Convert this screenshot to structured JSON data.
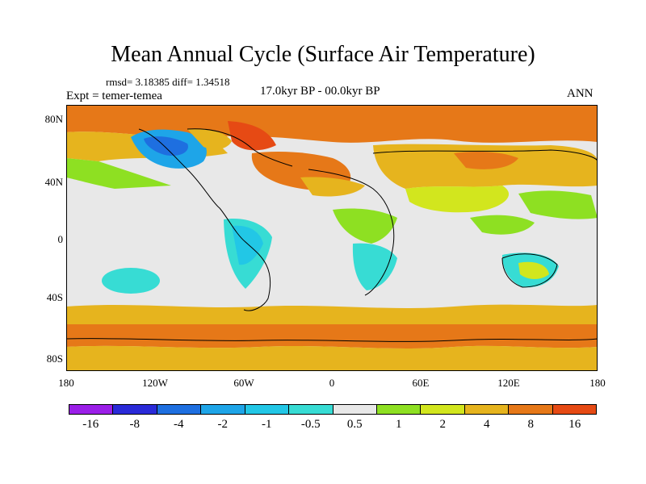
{
  "title": "Mean Annual Cycle (Surface Air Temperature)",
  "stats": "rmsd= 3.18385 diff= 1.34518",
  "expt": "Expt = temer-temea",
  "period": "17.0kyr BP - 00.0kyr BP",
  "season": "ANN",
  "lat_labels": [
    "80N",
    "40N",
    "0",
    "40S",
    "80S"
  ],
  "lon_labels": [
    "180",
    "120W",
    "60W",
    "0",
    "60E",
    "120E",
    "180"
  ],
  "colorbar": {
    "colors": [
      "#9b1fe8",
      "#2a2ad8",
      "#1e6fe0",
      "#1ea5e8",
      "#22c7e6",
      "#37dcd4",
      "#e8e8e8",
      "#8ee022",
      "#d2e61e",
      "#e6b41e",
      "#e67818",
      "#e64a14"
    ],
    "labels": [
      "-16",
      "-8",
      "-4",
      "-2",
      "-1",
      "-0.5",
      "0.5",
      "1",
      "2",
      "4",
      "8",
      "16"
    ]
  }
}
